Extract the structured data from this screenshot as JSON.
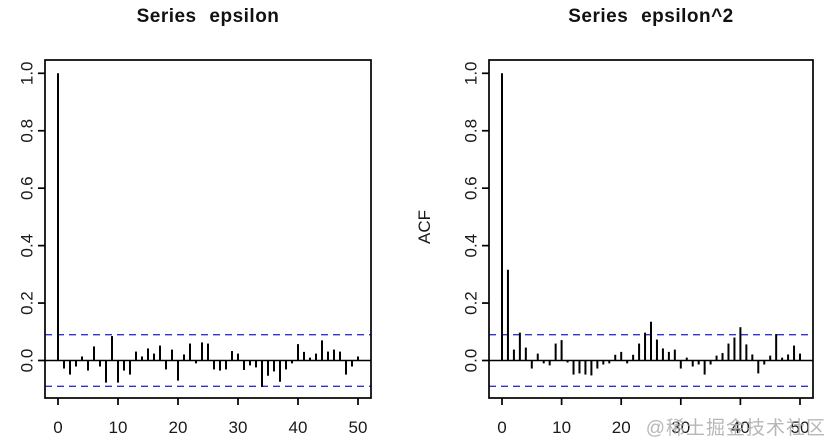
{
  "page": {
    "watermark": "@稀土掘金技术社区"
  },
  "colors": {
    "bar": "#000000",
    "axis": "#000000",
    "tick_text": "#1a1a1a",
    "confidence_line": "#3333CC",
    "watermark": "#ababab",
    "background": "#ffffff"
  },
  "chart_data": [
    {
      "type": "bar",
      "title": "Series epsilon",
      "xlabel": "",
      "ylabel": "",
      "legend": null,
      "grid": false,
      "x_ticks": [
        "0",
        "10",
        "20",
        "30",
        "40",
        "50"
      ],
      "x_tick_values": [
        0,
        10,
        20,
        30,
        40,
        50
      ],
      "y_ticks": [
        "0.0",
        "0.2",
        "0.4",
        "0.6",
        "0.8",
        "1.0"
      ],
      "y_tick_values": [
        0.0,
        0.2,
        0.4,
        0.6,
        0.8,
        1.0
      ],
      "xlim": [
        -2.2,
        52.2
      ],
      "ylim": [
        -0.13,
        1.05
      ],
      "confidence_bounds": [
        0.09,
        -0.09
      ],
      "lag_start": 0,
      "lag_end": 50,
      "values": [
        1.0,
        -0.028,
        -0.049,
        -0.021,
        0.014,
        -0.035,
        0.049,
        -0.021,
        -0.077,
        0.085,
        -0.077,
        -0.035,
        -0.049,
        0.031,
        0.014,
        0.042,
        0.024,
        0.052,
        -0.031,
        0.038,
        -0.07,
        0.021,
        0.059,
        -0.01,
        0.063,
        0.059,
        -0.031,
        -0.035,
        -0.031,
        0.033,
        0.024,
        -0.033,
        -0.017,
        -0.024,
        -0.092,
        -0.053,
        -0.038,
        -0.074,
        -0.031,
        -0.01,
        0.057,
        0.03,
        0.01,
        0.024,
        0.07,
        0.031,
        0.038,
        0.031,
        -0.049,
        -0.021,
        0.014
      ]
    },
    {
      "type": "bar",
      "title": "Series epsilon^2",
      "xlabel": "",
      "ylabel": "ACF",
      "legend": null,
      "grid": false,
      "x_ticks": [
        "0",
        "10",
        "20",
        "30",
        "40",
        "50"
      ],
      "x_tick_values": [
        0,
        10,
        20,
        30,
        40,
        50
      ],
      "y_ticks": [
        "0.0",
        "0.2",
        "0.4",
        "0.6",
        "0.8",
        "1.0"
      ],
      "y_tick_values": [
        0.0,
        0.2,
        0.4,
        0.6,
        0.8,
        1.0
      ],
      "xlim": [
        -2.2,
        52.2
      ],
      "ylim": [
        -0.13,
        1.05
      ],
      "confidence_bounds": [
        0.09,
        -0.09
      ],
      "lag_start": 0,
      "lag_end": 50,
      "values": [
        1.0,
        0.316,
        0.038,
        0.097,
        0.045,
        -0.028,
        0.024,
        -0.01,
        -0.017,
        0.059,
        0.071,
        -0.007,
        -0.049,
        -0.045,
        -0.049,
        -0.052,
        -0.028,
        -0.014,
        -0.01,
        0.02,
        0.03,
        -0.01,
        0.02,
        0.059,
        0.097,
        0.135,
        0.073,
        0.042,
        0.03,
        0.038,
        -0.028,
        0.01,
        -0.021,
        -0.014,
        -0.049,
        -0.014,
        0.017,
        0.026,
        0.059,
        0.08,
        0.116,
        0.056,
        0.021,
        -0.045,
        -0.014,
        0.017,
        0.092,
        0.01,
        0.021,
        0.052,
        0.024
      ]
    }
  ]
}
